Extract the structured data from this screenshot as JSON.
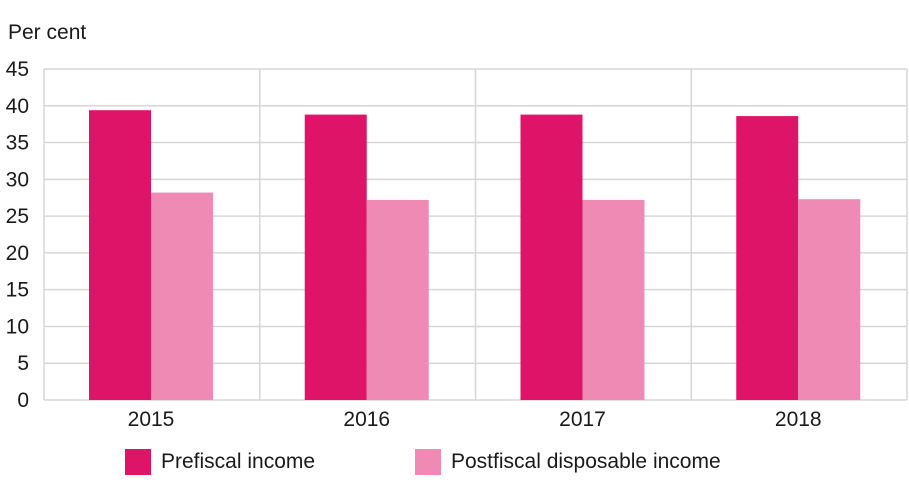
{
  "chart_data": {
    "type": "bar",
    "ylabel": "Per cent",
    "xlabel": "",
    "ylim": [
      0,
      45
    ],
    "yticks": [
      0,
      5,
      10,
      15,
      20,
      25,
      30,
      35,
      40,
      45
    ],
    "grid": true,
    "legend_position": "bottom",
    "categories": [
      "2015",
      "2016",
      "2017",
      "2018"
    ],
    "series": [
      {
        "name": "Prefiscal income",
        "color": "#de1468",
        "values": [
          39.4,
          38.8,
          38.8,
          38.6
        ]
      },
      {
        "name": "Postfiscal disposable income",
        "color": "#ef8ab5",
        "values": [
          28.2,
          27.2,
          27.2,
          27.3
        ]
      }
    ]
  }
}
